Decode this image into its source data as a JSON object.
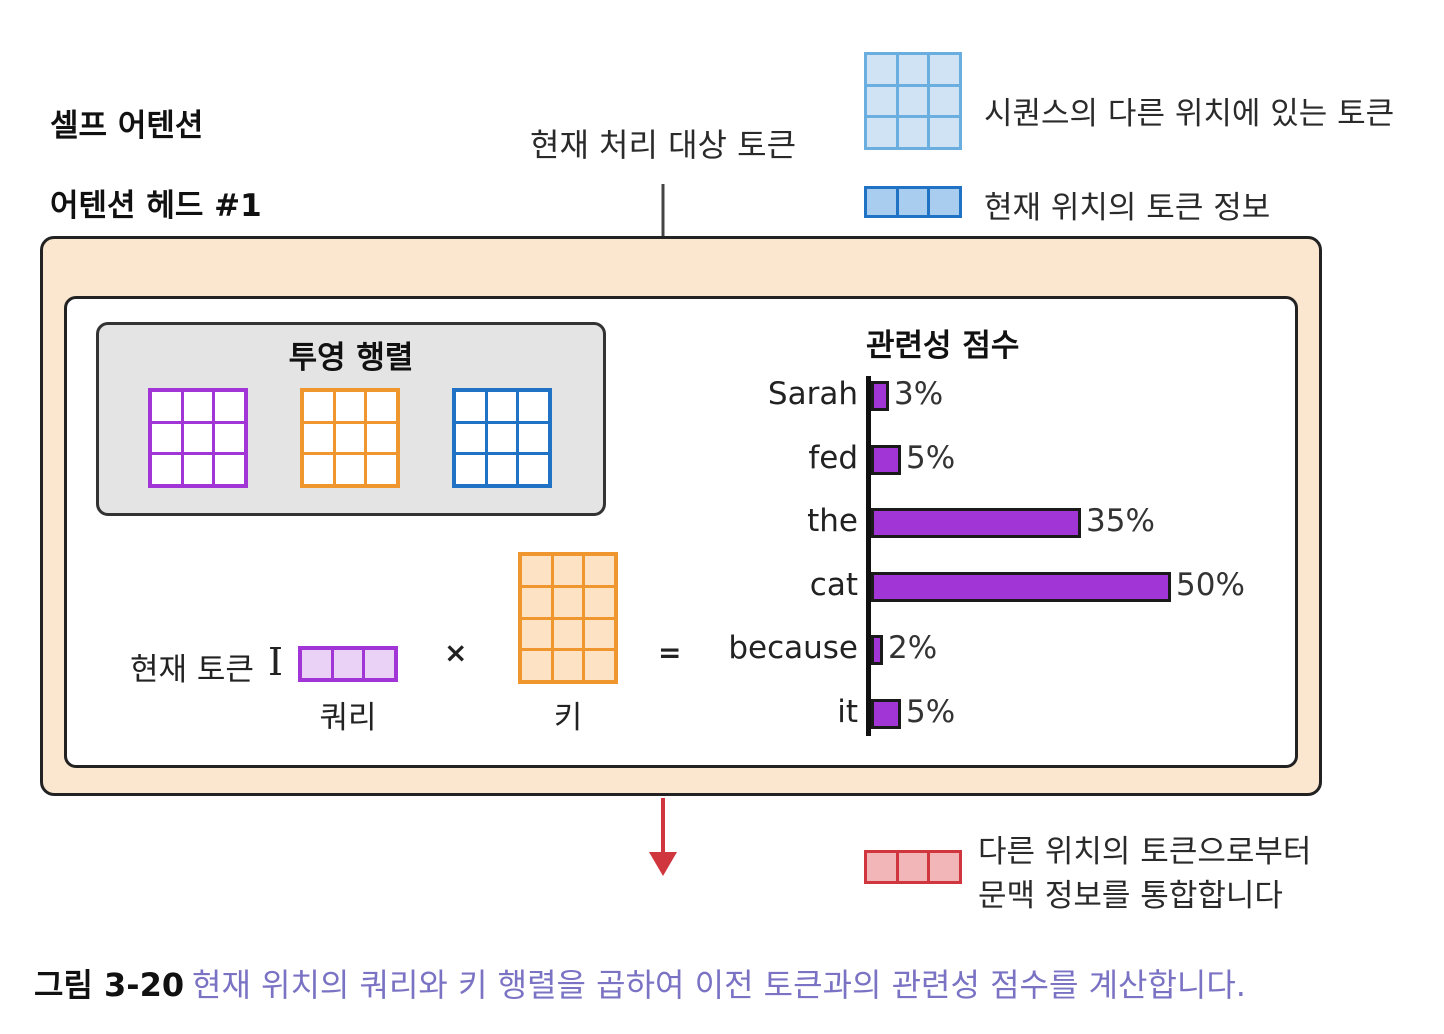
{
  "title": "셀프 어텐션",
  "subtitle": "어텐션 헤드 #1",
  "current_token_label": "현재 처리 대상 토큰",
  "legend": {
    "other_positions": "시퀀스의 다른 위치에 있는 토큰",
    "current_position": "현재 위치의 토큰 정보",
    "context": [
      "다른 위치의 토큰으로부터",
      "문맥 정보를 통합합니다"
    ]
  },
  "projection": {
    "title": "투영 행렬"
  },
  "equation": {
    "current_token": "현재 토큰",
    "cursor_glyph": "I",
    "query_label": "쿼리",
    "times": "×",
    "key_label": "키",
    "equals": "="
  },
  "colors": {
    "purple": "#a235d6",
    "orange": "#f0962e",
    "blue": "#1f72c4",
    "red": "#d0363d",
    "frame_bg": "#fbe6cf",
    "caption": "#7a73c4"
  },
  "chart_data": {
    "type": "bar",
    "title": "관련성 점수",
    "orientation": "horizontal",
    "categories": [
      "Sarah",
      "fed",
      "the",
      "cat",
      "because",
      "it"
    ],
    "values": [
      3,
      5,
      35,
      50,
      2,
      5
    ],
    "labels": [
      "3%",
      "5%",
      "35%",
      "50%",
      "2%",
      "5%"
    ]
  },
  "caption": {
    "number": "그림 3-20",
    "text": "현재 위치의 쿼리와 키 행렬을 곱하여 이전 토큰과의 관련성 점수를 계산합니다."
  }
}
